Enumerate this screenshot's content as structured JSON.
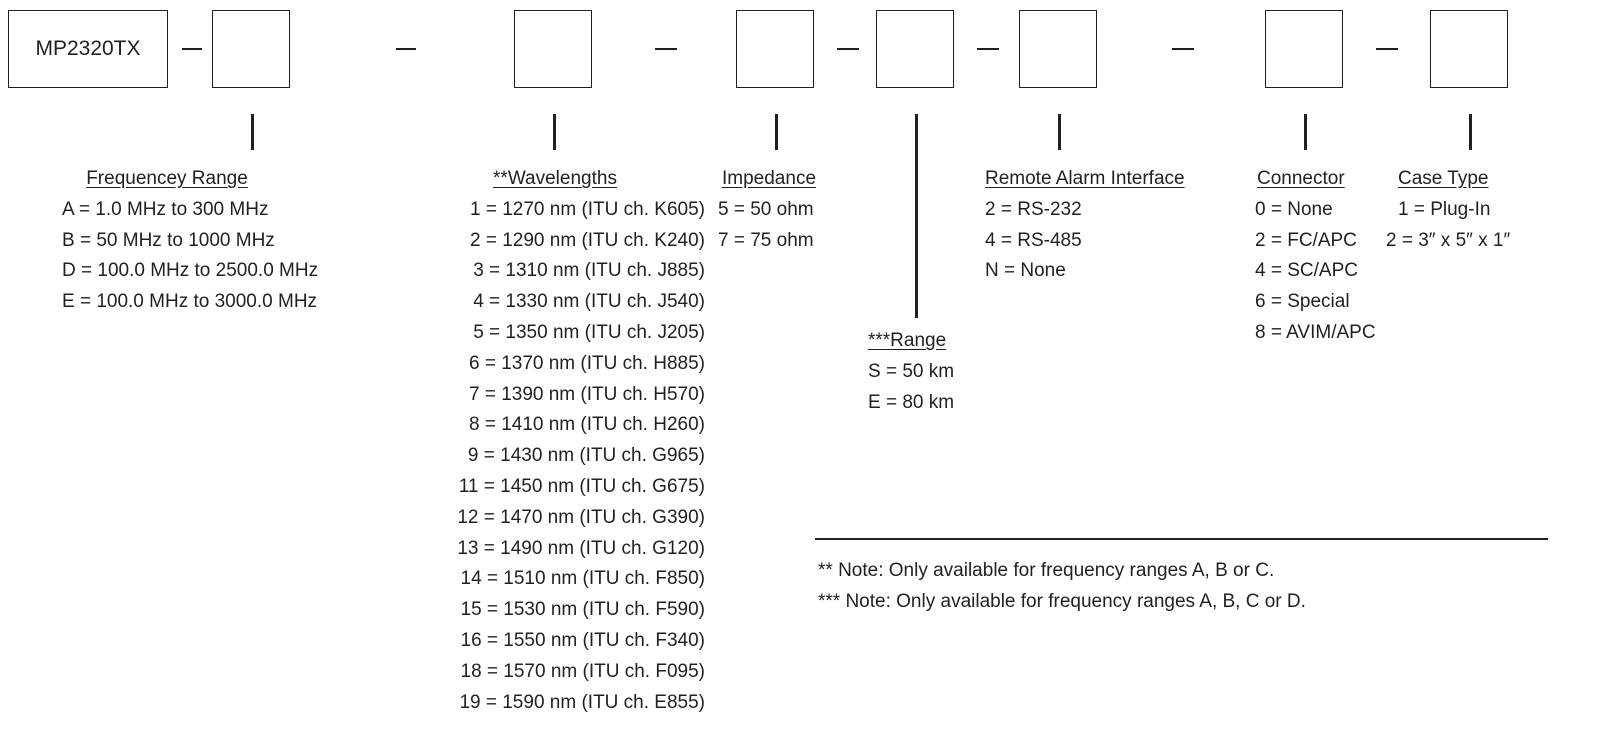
{
  "model": "MP2320TX",
  "groups": {
    "frequency_range": {
      "heading": "Frequencey Range",
      "items": [
        "A = 1.0 MHz to 300 MHz",
        "B = 50 MHz to 1000 MHz",
        "D = 100.0 MHz to 2500.0 MHz",
        "E = 100.0 MHz to 3000.0 MHz"
      ]
    },
    "wavelengths": {
      "heading": "**Wavelengths",
      "items": [
        "1 = 1270 nm (ITU ch. K605)",
        "2 = 1290 nm (ITU ch. K240)",
        "3 = 1310 nm (ITU ch. J885)",
        "4 = 1330 nm (ITU ch. J540)",
        "5 = 1350 nm (ITU ch. J205)",
        "6 = 1370 nm (ITU ch. H885)",
        "7 = 1390 nm (ITU ch. H570)",
        "8 = 1410 nm (ITU ch. H260)",
        "9 = 1430 nm (ITU ch. G965)",
        "11 = 1450 nm (ITU ch. G675)",
        "12 = 1470 nm (ITU ch. G390)",
        "13 = 1490 nm (ITU ch. G120)",
        "14 = 1510 nm (ITU ch. F850)",
        "15 = 1530 nm (ITU ch. F590)",
        "16 = 1550 nm (ITU ch. F340)",
        "18 = 1570 nm (ITU ch. F095)",
        "19 = 1590 nm (ITU ch. E855)"
      ]
    },
    "impedance": {
      "heading": "Impedance",
      "items": [
        "5 = 50 ohm",
        "7 = 75 ohm"
      ]
    },
    "range": {
      "heading": "***Range",
      "items": [
        "S = 50 km",
        "E = 80 km"
      ]
    },
    "remote_alarm": {
      "heading": "Remote Alarm Interface",
      "items": [
        "2 = RS-232",
        "4 = RS-485",
        "N = None"
      ]
    },
    "connector": {
      "heading": "Connector",
      "items": [
        "0 = None",
        "2 = FC/APC",
        "4 = SC/APC",
        "6 = Special",
        "8 = AVIM/APC"
      ]
    },
    "case_type": {
      "heading": "Case Type",
      "items": [
        "1 = Plug-In",
        "2 = 3″ x 5″ x 1″"
      ]
    }
  },
  "notes": [
    "** Note: Only available for frequency ranges A, B or C.",
    "*** Note: Only available for frequency ranges A, B, C or D."
  ]
}
